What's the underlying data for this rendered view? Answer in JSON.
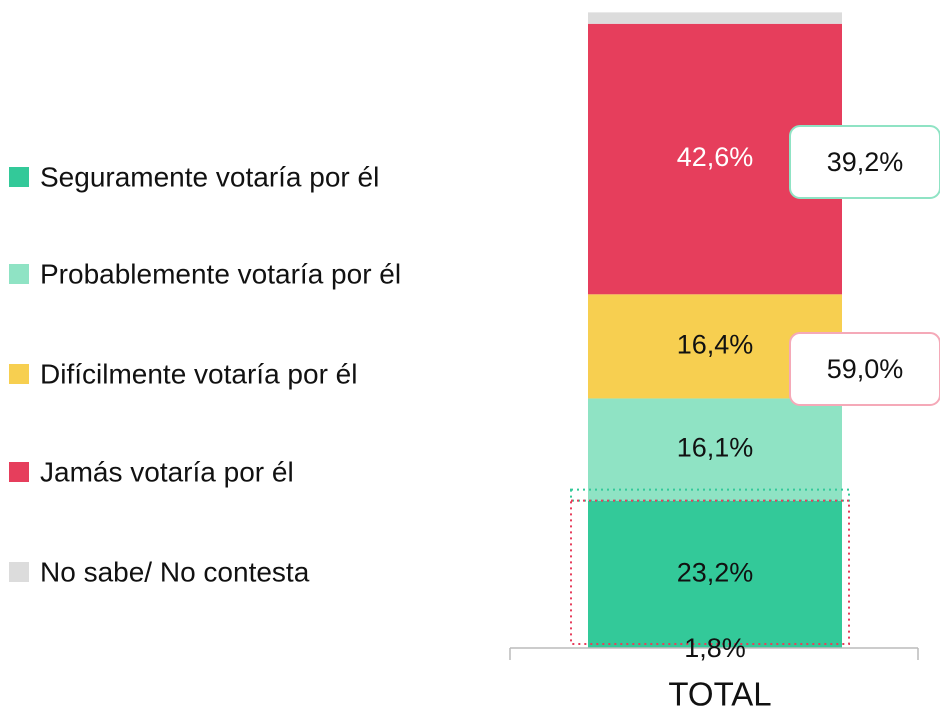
{
  "chart_data": {
    "type": "stacked-bar",
    "categories": [
      "TOTAL"
    ],
    "series": [
      {
        "name": "Seguramente votaría por él",
        "color": "#33c999",
        "values": [
          23.2
        ],
        "value_labels": [
          "23,2%"
        ]
      },
      {
        "name": "Probablemente votaría por él",
        "color": "#8fe3c4",
        "values": [
          16.1
        ],
        "value_labels": [
          "16,1%"
        ]
      },
      {
        "name": "Difícilmente votaría por él",
        "color": "#f7cf50",
        "values": [
          16.4
        ],
        "value_labels": [
          "16,4%"
        ]
      },
      {
        "name": "Jamás votaría por él",
        "color": "#e63e5c",
        "values": [
          42.6
        ],
        "value_labels": [
          "42,6%"
        ]
      },
      {
        "name": "No sabe/ No contesta",
        "color": "#dcdcdc",
        "values": [
          1.8
        ],
        "value_labels": [
          "1,8%"
        ]
      }
    ],
    "annotations": [
      "39,2%",
      "59,0%"
    ],
    "ylim": [
      0,
      100
    ]
  }
}
